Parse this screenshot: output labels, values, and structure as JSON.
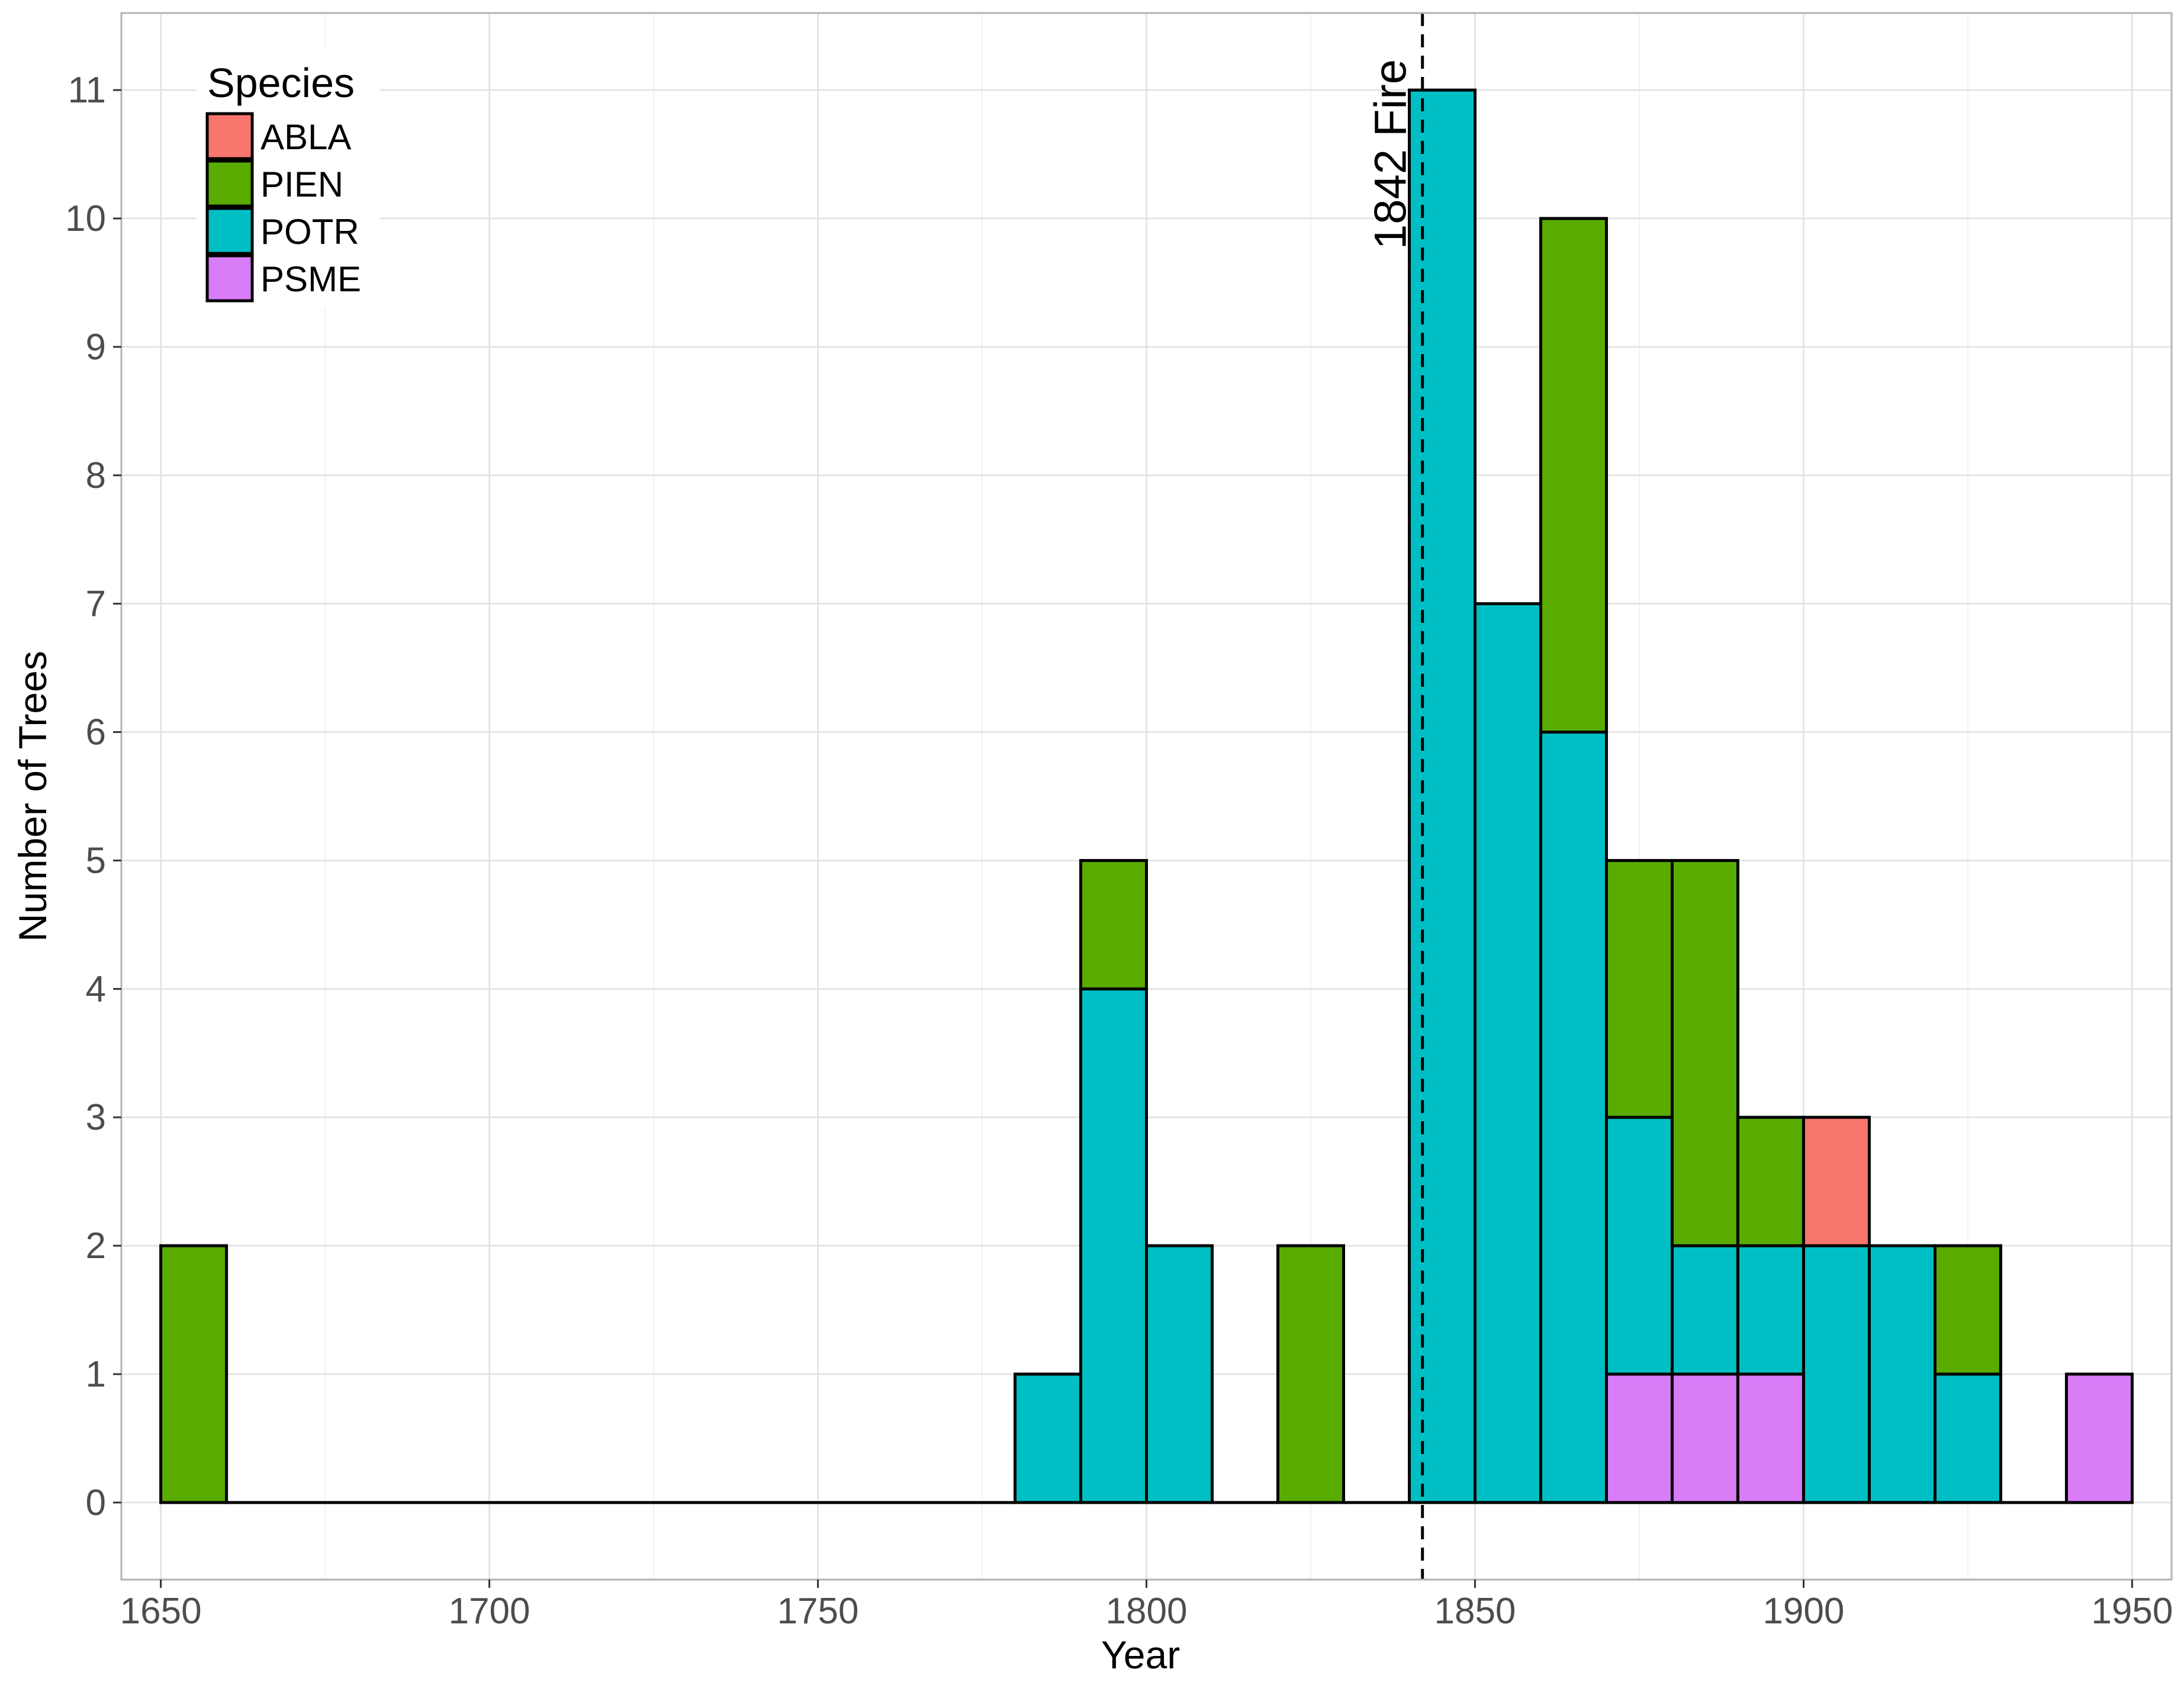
{
  "chart_data": {
    "type": "bar",
    "stacked": true,
    "xlabel": "Year",
    "ylabel": "Number of Trees",
    "xlim": [
      1644,
      1956
    ],
    "ylim": [
      -0.6,
      11.6
    ],
    "x_ticks": [
      1650,
      1700,
      1750,
      1800,
      1850,
      1900,
      1950
    ],
    "y_ticks": [
      0,
      1,
      2,
      3,
      4,
      5,
      6,
      7,
      8,
      9,
      10,
      11
    ],
    "bin_width": 10,
    "grid": true,
    "legend": {
      "title": "Species",
      "position": "top-left",
      "entries": [
        "ABLA",
        "PIEN",
        "POTR",
        "PSME"
      ]
    },
    "colors": {
      "ABLA": "#f8766d",
      "PIEN": "#5aab00",
      "POTR": "#00bfc4",
      "PSME": "#d87cf7"
    },
    "stack_order_bottom_to_top": [
      "PSME",
      "POTR",
      "PIEN",
      "ABLA"
    ],
    "bins": [
      {
        "start": 1650,
        "end": 1660,
        "ABLA": 0,
        "PIEN": 2,
        "POTR": 0,
        "PSME": 0
      },
      {
        "start": 1660,
        "end": 1670,
        "ABLA": 0,
        "PIEN": 0,
        "POTR": 0,
        "PSME": 0
      },
      {
        "start": 1670,
        "end": 1680,
        "ABLA": 0,
        "PIEN": 0,
        "POTR": 0,
        "PSME": 0
      },
      {
        "start": 1680,
        "end": 1690,
        "ABLA": 0,
        "PIEN": 0,
        "POTR": 0,
        "PSME": 0
      },
      {
        "start": 1690,
        "end": 1700,
        "ABLA": 0,
        "PIEN": 0,
        "POTR": 0,
        "PSME": 0
      },
      {
        "start": 1700,
        "end": 1710,
        "ABLA": 0,
        "PIEN": 0,
        "POTR": 0,
        "PSME": 0
      },
      {
        "start": 1710,
        "end": 1720,
        "ABLA": 0,
        "PIEN": 0,
        "POTR": 0,
        "PSME": 0
      },
      {
        "start": 1720,
        "end": 1730,
        "ABLA": 0,
        "PIEN": 0,
        "POTR": 0,
        "PSME": 0
      },
      {
        "start": 1730,
        "end": 1740,
        "ABLA": 0,
        "PIEN": 0,
        "POTR": 0,
        "PSME": 0
      },
      {
        "start": 1740,
        "end": 1750,
        "ABLA": 0,
        "PIEN": 0,
        "POTR": 0,
        "PSME": 0
      },
      {
        "start": 1750,
        "end": 1760,
        "ABLA": 0,
        "PIEN": 0,
        "POTR": 0,
        "PSME": 0
      },
      {
        "start": 1760,
        "end": 1770,
        "ABLA": 0,
        "PIEN": 0,
        "POTR": 0,
        "PSME": 0
      },
      {
        "start": 1770,
        "end": 1780,
        "ABLA": 0,
        "PIEN": 0,
        "POTR": 0,
        "PSME": 0
      },
      {
        "start": 1780,
        "end": 1790,
        "ABLA": 0,
        "PIEN": 0,
        "POTR": 1,
        "PSME": 0
      },
      {
        "start": 1790,
        "end": 1800,
        "ABLA": 0,
        "PIEN": 1,
        "POTR": 4,
        "PSME": 0
      },
      {
        "start": 1800,
        "end": 1810,
        "ABLA": 0,
        "PIEN": 0,
        "POTR": 2,
        "PSME": 0
      },
      {
        "start": 1810,
        "end": 1820,
        "ABLA": 0,
        "PIEN": 0,
        "POTR": 0,
        "PSME": 0
      },
      {
        "start": 1820,
        "end": 1830,
        "ABLA": 0,
        "PIEN": 2,
        "POTR": 0,
        "PSME": 0
      },
      {
        "start": 1830,
        "end": 1840,
        "ABLA": 0,
        "PIEN": 0,
        "POTR": 0,
        "PSME": 0
      },
      {
        "start": 1840,
        "end": 1850,
        "ABLA": 0,
        "PIEN": 0,
        "POTR": 11,
        "PSME": 0
      },
      {
        "start": 1850,
        "end": 1860,
        "ABLA": 0,
        "PIEN": 0,
        "POTR": 7,
        "PSME": 0
      },
      {
        "start": 1860,
        "end": 1870,
        "ABLA": 0,
        "PIEN": 4,
        "POTR": 6,
        "PSME": 0
      },
      {
        "start": 1870,
        "end": 1880,
        "ABLA": 0,
        "PIEN": 2,
        "POTR": 2,
        "PSME": 1
      },
      {
        "start": 1880,
        "end": 1890,
        "ABLA": 0,
        "PIEN": 3,
        "POTR": 1,
        "PSME": 1
      },
      {
        "start": 1890,
        "end": 1900,
        "ABLA": 0,
        "PIEN": 1,
        "POTR": 1,
        "PSME": 1
      },
      {
        "start": 1900,
        "end": 1910,
        "ABLA": 1,
        "PIEN": 0,
        "POTR": 2,
        "PSME": 0
      },
      {
        "start": 1910,
        "end": 1920,
        "ABLA": 0,
        "PIEN": 0,
        "POTR": 2,
        "PSME": 0
      },
      {
        "start": 1920,
        "end": 1930,
        "ABLA": 0,
        "PIEN": 1,
        "POTR": 1,
        "PSME": 0
      },
      {
        "start": 1930,
        "end": 1940,
        "ABLA": 0,
        "PIEN": 0,
        "POTR": 0,
        "PSME": 0
      },
      {
        "start": 1940,
        "end": 1950,
        "ABLA": 0,
        "PIEN": 0,
        "POTR": 0,
        "PSME": 1
      }
    ],
    "annotations": [
      {
        "type": "vline",
        "x": 1842,
        "style": "dashed",
        "label": "1842 Fire"
      }
    ]
  }
}
